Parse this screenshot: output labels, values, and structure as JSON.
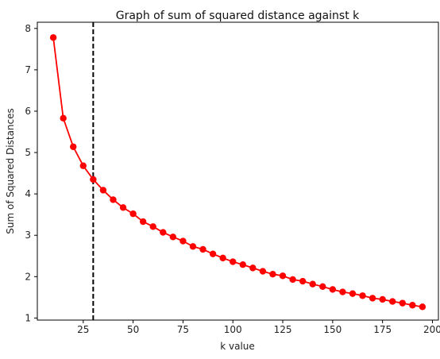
{
  "chart_data": {
    "type": "line",
    "title": "Graph of sum of squared distance against k",
    "xlabel": "k value",
    "ylabel": "Sum of Squared Distances",
    "xlim": [
      2,
      203
    ],
    "ylim": [
      0.95,
      8.15
    ],
    "xticks": [
      25,
      50,
      75,
      100,
      125,
      150,
      175,
      200
    ],
    "yticks": [
      1,
      2,
      3,
      4,
      5,
      6,
      7,
      8
    ],
    "grid": false,
    "series": [
      {
        "color": "#ff0000",
        "marker": "circle",
        "x": [
          10,
          15,
          20,
          25,
          30,
          35,
          40,
          45,
          50,
          55,
          60,
          65,
          70,
          75,
          80,
          85,
          90,
          95,
          100,
          105,
          110,
          115,
          120,
          125,
          130,
          135,
          140,
          145,
          150,
          155,
          160,
          165,
          170,
          175,
          180,
          185,
          190,
          195
        ],
        "y": [
          7.78,
          5.83,
          5.14,
          4.68,
          4.35,
          4.09,
          3.86,
          3.67,
          3.52,
          3.33,
          3.21,
          3.07,
          2.96,
          2.86,
          2.73,
          2.66,
          2.55,
          2.45,
          2.36,
          2.29,
          2.21,
          2.13,
          2.06,
          2.02,
          1.93,
          1.89,
          1.82,
          1.76,
          1.69,
          1.63,
          1.59,
          1.54,
          1.48,
          1.45,
          1.4,
          1.36,
          1.31,
          1.27
        ]
      }
    ],
    "vline": {
      "x": 30,
      "color": "#000000",
      "style": "dashed"
    }
  }
}
